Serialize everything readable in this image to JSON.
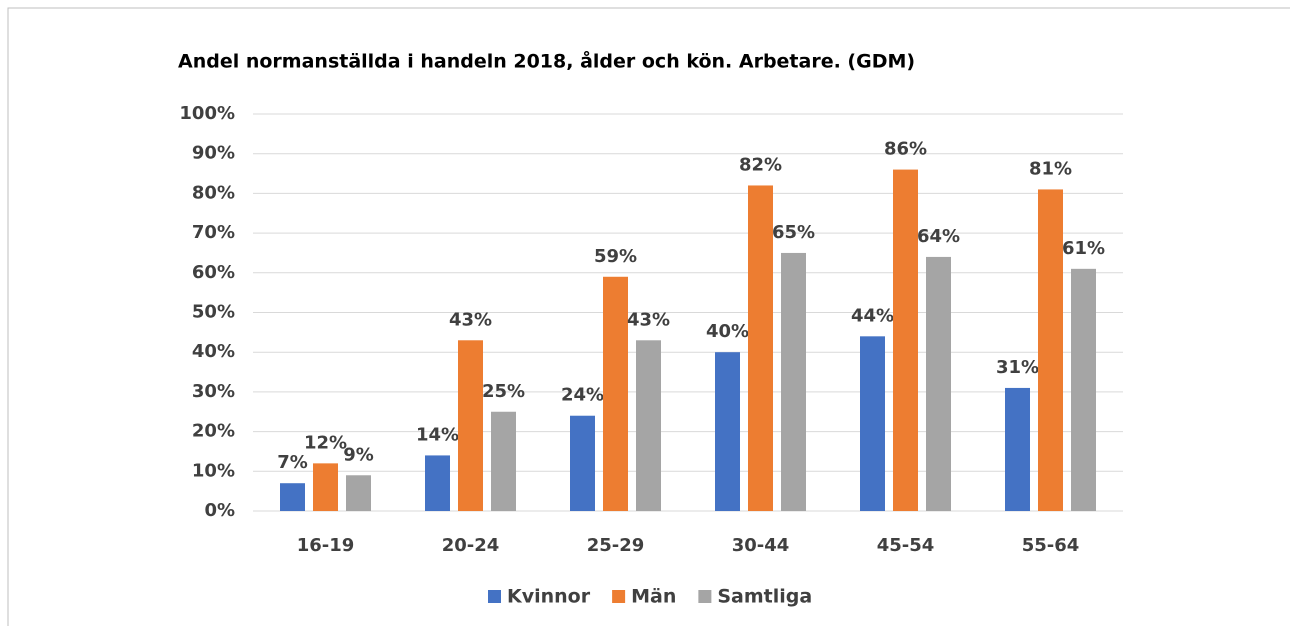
{
  "chart_data": {
    "type": "bar",
    "title": "Andel normanställda i handeln 2018, ålder och kön. Arbetare. (GDM)",
    "categories": [
      "16-19",
      "20-24",
      "25-29",
      "30-44",
      "45-54",
      "55-64"
    ],
    "series": [
      {
        "name": "Kvinnor",
        "color": "#4472c4",
        "values": [
          7,
          14,
          24,
          40,
          44,
          31
        ],
        "value_labels": [
          "7%",
          "14%",
          "24%",
          "40%",
          "44%",
          "31%"
        ]
      },
      {
        "name": "Män",
        "color": "#ed7d31",
        "values": [
          12,
          43,
          59,
          82,
          86,
          81
        ],
        "value_labels": [
          "12%",
          "43%",
          "59%",
          "82%",
          "86%",
          "81%"
        ]
      },
      {
        "name": "Samtliga",
        "color": "#a5a5a5",
        "values": [
          9,
          25,
          43,
          65,
          64,
          61
        ],
        "value_labels": [
          "9%",
          "25%",
          "43%",
          "65%",
          "64%",
          "61%"
        ]
      }
    ],
    "ylim": [
      0,
      100
    ],
    "yticks": [
      {
        "value": 0,
        "label": "0%"
      },
      {
        "value": 10,
        "label": "10%"
      },
      {
        "value": 20,
        "label": "20%"
      },
      {
        "value": 30,
        "label": "30%"
      },
      {
        "value": 40,
        "label": "40%"
      },
      {
        "value": 50,
        "label": "50%"
      },
      {
        "value": 60,
        "label": "60%"
      },
      {
        "value": 70,
        "label": "70%"
      },
      {
        "value": 80,
        "label": "80%"
      },
      {
        "value": 90,
        "label": "90%"
      },
      {
        "value": 100,
        "label": "100%"
      }
    ],
    "grid": true,
    "legend": "bottom"
  }
}
